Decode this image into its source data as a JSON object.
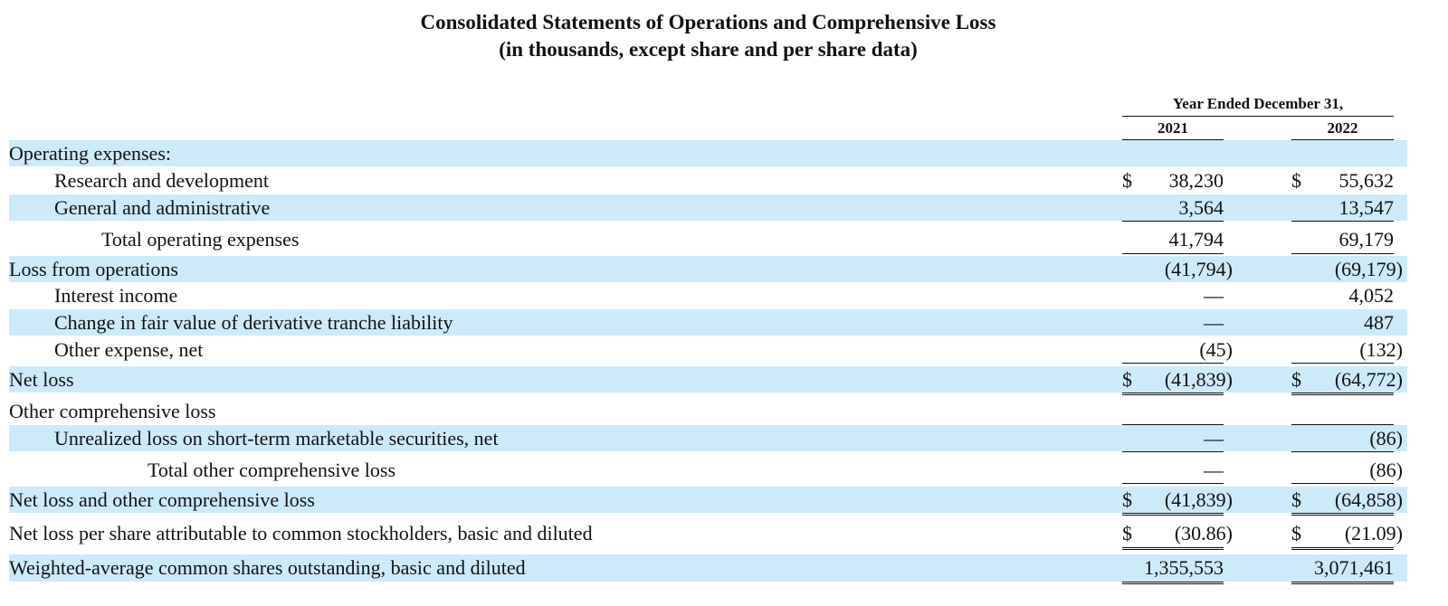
{
  "header": {
    "title": "Consolidated Statements of Operations and Comprehensive Loss",
    "subtitle": "(in thousands, except share and per share data)"
  },
  "table": {
    "period_label": "Year Ended December 31,",
    "columns": [
      "2021",
      "2022"
    ],
    "rows": [
      {
        "label": "Operating expenses:"
      },
      {
        "label": "Research and development",
        "currency": "$",
        "cells": [
          "38,230",
          "55,632"
        ]
      },
      {
        "label": "General and administrative",
        "cells": [
          "3,564",
          "13,547"
        ]
      },
      {
        "label": "Total operating expenses",
        "cells": [
          "41,794",
          "69,179"
        ]
      },
      {
        "label": "Loss from operations",
        "cells": [
          "(41,794)",
          "(69,179)"
        ]
      },
      {
        "label": "Interest income",
        "cells": [
          "—",
          "4,052"
        ]
      },
      {
        "label": "Change in fair value of derivative tranche liability",
        "cells": [
          "—",
          "487"
        ]
      },
      {
        "label": "Other expense, net",
        "cells": [
          "(45)",
          "(132)"
        ]
      },
      {
        "label": "Net loss",
        "currency": "$",
        "cells": [
          "(41,839)",
          "(64,772)"
        ]
      },
      {
        "label": "Other comprehensive loss"
      },
      {
        "label": "Unrealized loss on short-term marketable securities, net",
        "cells": [
          "—",
          "(86)"
        ]
      },
      {
        "label": "Total other comprehensive loss",
        "cells": [
          "—",
          "(86)"
        ]
      },
      {
        "label": "Net loss and other comprehensive loss",
        "currency": "$",
        "cells": [
          "(41,839)",
          "(64,858)"
        ]
      },
      {
        "label": "Net loss per share attributable to common stockholders, basic and diluted",
        "currency": "$",
        "cells": [
          "(30.86)",
          "(21.09)"
        ]
      },
      {
        "label": "Weighted-average common shares outstanding, basic and diluted",
        "cells": [
          "1,355,553",
          "3,071,461"
        ]
      }
    ]
  }
}
